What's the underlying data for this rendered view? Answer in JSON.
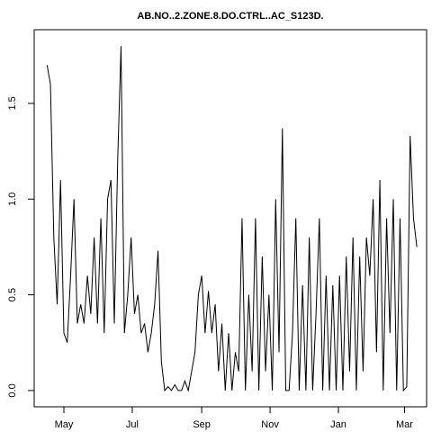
{
  "chart_data": {
    "type": "line",
    "title": "AB.NO..2.ZONE.8.DO.CTRL..AC_S123D.",
    "x": [
      -15,
      -12,
      -9,
      -6,
      -3,
      0,
      3,
      6,
      9,
      12,
      15,
      18,
      21,
      24,
      27,
      30,
      33,
      36,
      39,
      42,
      45,
      48,
      51,
      54,
      57,
      60,
      63,
      66,
      69,
      72,
      75,
      78,
      81,
      84,
      87,
      90,
      93,
      96,
      99,
      102,
      105,
      108,
      111,
      114,
      117,
      120,
      123,
      126,
      129,
      132,
      135,
      138,
      141,
      144,
      147,
      150,
      153,
      156,
      159,
      162,
      165,
      168,
      171,
      174,
      177,
      180,
      183,
      186,
      189,
      192,
      195,
      198,
      201,
      204,
      207,
      210,
      213,
      216,
      219,
      222,
      225,
      228,
      231,
      234,
      237,
      240,
      243,
      246,
      249,
      252,
      255,
      258,
      261,
      264,
      267,
      270,
      273,
      276,
      279,
      282,
      285,
      288,
      291,
      294,
      297,
      300,
      303,
      306,
      309,
      312,
      315
    ],
    "series": [
      {
        "color": "#000000",
        "values": [
          1.7,
          1.6,
          0.8,
          0.45,
          1.1,
          0.3,
          0.25,
          0.6,
          1.0,
          0.35,
          0.45,
          0.35,
          0.6,
          0.4,
          0.8,
          0.35,
          0.9,
          0.3,
          1.0,
          1.1,
          0.35,
          1.2,
          1.8,
          0.3,
          0.5,
          0.8,
          0.4,
          0.5,
          0.3,
          0.35,
          0.2,
          0.3,
          0.45,
          0.73,
          0.15,
          0.0,
          0.02,
          0.0,
          0.03,
          0.0,
          0.0,
          0.05,
          0.0,
          0.1,
          0.2,
          0.5,
          0.6,
          0.3,
          0.52,
          0.3,
          0.45,
          0.1,
          0.35,
          0.0,
          0.3,
          0.0,
          0.2,
          0.1,
          0.9,
          0.0,
          0.5,
          0.1,
          0.9,
          0.0,
          0.7,
          0.1,
          0.5,
          0.0,
          1.0,
          0.2,
          1.37,
          0.0,
          0.0,
          0.3,
          0.9,
          0.0,
          0.55,
          0.0,
          0.8,
          0.0,
          0.4,
          0.9,
          0.0,
          0.6,
          0.0,
          0.55,
          0.0,
          0.6,
          0.0,
          0.7,
          0.1,
          0.8,
          0.0,
          0.7,
          0.1,
          0.8,
          0.6,
          1.0,
          0.2,
          1.1,
          0.0,
          0.9,
          0.3,
          1.0,
          0.0,
          0.9,
          0.0,
          0.02,
          1.33,
          0.9,
          0.75
        ]
      }
    ],
    "xlim": [
      -26.5,
      323.7
    ],
    "xticks": [
      {
        "value": 0,
        "label": "May"
      },
      {
        "value": 61,
        "label": "Jul"
      },
      {
        "value": 123,
        "label": "Sep"
      },
      {
        "value": 184,
        "label": "Nov"
      },
      {
        "value": 245,
        "label": "Jan"
      },
      {
        "value": 304,
        "label": "Mar"
      }
    ],
    "ylim": [
      -0.085,
      1.885
    ],
    "yticks": [
      {
        "value": 0,
        "label": "0.0"
      },
      {
        "value": 0.5,
        "label": "0.5"
      },
      {
        "value": 1,
        "label": "1.0"
      },
      {
        "value": 1.5,
        "label": "1.5"
      }
    ],
    "grid": false
  }
}
